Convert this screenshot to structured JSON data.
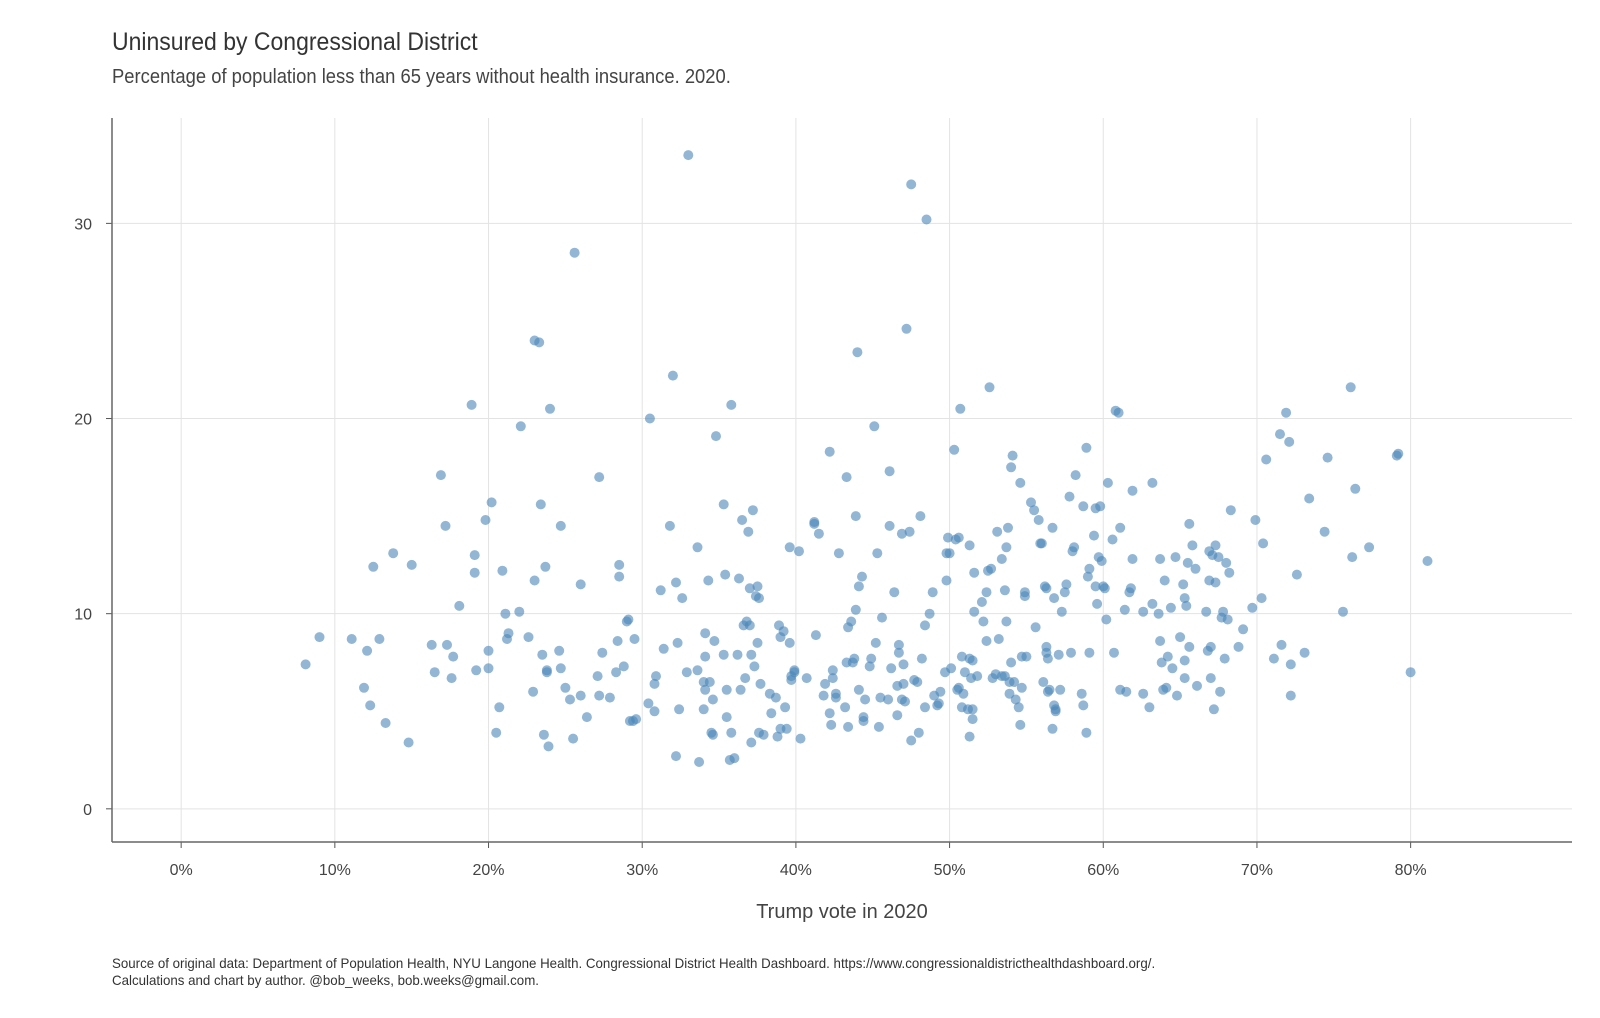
{
  "chart_data": {
    "type": "scatter",
    "title": "Uninsured by Congressional District",
    "subtitle": "Percentage of population less than 65 years without health insurance. 2020.",
    "xlabel": "Trump vote in 2020",
    "ylabel": "",
    "xlim": [
      -0.045,
      0.905
    ],
    "ylim": [
      -1.7,
      35.4
    ],
    "x_ticks": [
      0,
      0.1,
      0.2,
      0.3,
      0.4,
      0.5,
      0.6,
      0.7,
      0.8
    ],
    "x_tick_labels": [
      "0%",
      "10%",
      "20%",
      "30%",
      "40%",
      "50%",
      "60%",
      "70%",
      "80%"
    ],
    "y_ticks": [
      0,
      10,
      20,
      30
    ],
    "y_tick_labels": [
      "0",
      "10",
      "20",
      "30"
    ],
    "grid": true,
    "point_color": "#4a86b8",
    "caption_lines": [
      "Source of original data: Department of Population Health, NYU Langone Health. Congressional District Health Dashboard. https://www.congressionaldistricthealthdashboard.org/.",
      "Calculations and chart by author. @bob_weeks, bob.weeks@gmail.com."
    ],
    "points": [
      [
        0.081,
        7.4
      ],
      [
        0.09,
        8.8
      ],
      [
        0.111,
        8.7
      ],
      [
        0.119,
        6.2
      ],
      [
        0.121,
        8.1
      ],
      [
        0.123,
        5.3
      ],
      [
        0.125,
        12.4
      ],
      [
        0.129,
        8.7
      ],
      [
        0.133,
        4.4
      ],
      [
        0.138,
        13.1
      ],
      [
        0.148,
        3.4
      ],
      [
        0.15,
        12.5
      ],
      [
        0.163,
        8.4
      ],
      [
        0.165,
        7.0
      ],
      [
        0.169,
        17.1
      ],
      [
        0.172,
        14.5
      ],
      [
        0.173,
        8.4
      ],
      [
        0.176,
        6.7
      ],
      [
        0.177,
        7.8
      ],
      [
        0.181,
        10.4
      ],
      [
        0.189,
        20.7
      ],
      [
        0.191,
        13.0
      ],
      [
        0.191,
        12.1
      ],
      [
        0.192,
        7.1
      ],
      [
        0.198,
        14.8
      ],
      [
        0.2,
        8.1
      ],
      [
        0.2,
        7.2
      ],
      [
        0.202,
        15.7
      ],
      [
        0.205,
        3.9
      ],
      [
        0.207,
        5.2
      ],
      [
        0.209,
        12.2
      ],
      [
        0.211,
        10.0
      ],
      [
        0.212,
        8.7
      ],
      [
        0.213,
        9.0
      ],
      [
        0.22,
        10.1
      ],
      [
        0.221,
        19.6
      ],
      [
        0.226,
        8.8
      ],
      [
        0.229,
        6.0
      ],
      [
        0.23,
        11.7
      ],
      [
        0.23,
        24.0
      ],
      [
        0.233,
        23.9
      ],
      [
        0.234,
        15.6
      ],
      [
        0.235,
        7.9
      ],
      [
        0.236,
        3.8
      ],
      [
        0.237,
        12.4
      ],
      [
        0.238,
        7.0
      ],
      [
        0.238,
        7.1
      ],
      [
        0.239,
        3.2
      ],
      [
        0.24,
        20.5
      ],
      [
        0.246,
        8.1
      ],
      [
        0.247,
        14.5
      ],
      [
        0.247,
        7.2
      ],
      [
        0.25,
        6.2
      ],
      [
        0.253,
        5.6
      ],
      [
        0.255,
        3.6
      ],
      [
        0.256,
        28.5
      ],
      [
        0.26,
        11.5
      ],
      [
        0.26,
        5.8
      ],
      [
        0.264,
        4.7
      ],
      [
        0.271,
        6.8
      ],
      [
        0.272,
        17.0
      ],
      [
        0.272,
        5.8
      ],
      [
        0.274,
        8.0
      ],
      [
        0.279,
        5.7
      ],
      [
        0.283,
        7.0
      ],
      [
        0.284,
        8.6
      ],
      [
        0.285,
        12.5
      ],
      [
        0.285,
        11.9
      ],
      [
        0.288,
        7.3
      ],
      [
        0.29,
        9.6
      ],
      [
        0.291,
        9.7
      ],
      [
        0.292,
        4.5
      ],
      [
        0.294,
        4.5
      ],
      [
        0.295,
        8.7
      ],
      [
        0.296,
        4.6
      ],
      [
        0.304,
        5.4
      ],
      [
        0.305,
        20.0
      ],
      [
        0.308,
        5.0
      ],
      [
        0.308,
        6.4
      ],
      [
        0.309,
        6.8
      ],
      [
        0.312,
        11.2
      ],
      [
        0.314,
        8.2
      ],
      [
        0.318,
        14.5
      ],
      [
        0.32,
        22.2
      ],
      [
        0.322,
        11.6
      ],
      [
        0.322,
        2.7
      ],
      [
        0.323,
        8.5
      ],
      [
        0.324,
        5.1
      ],
      [
        0.326,
        10.8
      ],
      [
        0.329,
        7.0
      ],
      [
        0.33,
        33.5
      ],
      [
        0.336,
        13.4
      ],
      [
        0.336,
        7.1
      ],
      [
        0.337,
        2.4
      ],
      [
        0.34,
        6.5
      ],
      [
        0.34,
        5.1
      ],
      [
        0.341,
        9.0
      ],
      [
        0.341,
        6.1
      ],
      [
        0.341,
        7.8
      ],
      [
        0.343,
        11.7
      ],
      [
        0.344,
        6.5
      ],
      [
        0.345,
        3.9
      ],
      [
        0.346,
        3.8
      ],
      [
        0.346,
        5.6
      ],
      [
        0.347,
        8.6
      ],
      [
        0.348,
        19.1
      ],
      [
        0.353,
        15.6
      ],
      [
        0.353,
        7.9
      ],
      [
        0.354,
        12.0
      ],
      [
        0.355,
        4.7
      ],
      [
        0.355,
        6.1
      ],
      [
        0.357,
        2.5
      ],
      [
        0.358,
        20.7
      ],
      [
        0.358,
        3.9
      ],
      [
        0.36,
        2.6
      ],
      [
        0.362,
        7.9
      ],
      [
        0.363,
        11.8
      ],
      [
        0.364,
        6.1
      ],
      [
        0.365,
        14.8
      ],
      [
        0.366,
        9.4
      ],
      [
        0.367,
        6.7
      ],
      [
        0.368,
        9.6
      ],
      [
        0.369,
        14.2
      ],
      [
        0.37,
        11.3
      ],
      [
        0.37,
        9.4
      ],
      [
        0.371,
        3.4
      ],
      [
        0.371,
        7.9
      ],
      [
        0.372,
        15.3
      ],
      [
        0.373,
        7.3
      ],
      [
        0.374,
        10.9
      ],
      [
        0.375,
        11.4
      ],
      [
        0.375,
        8.5
      ],
      [
        0.376,
        3.9
      ],
      [
        0.376,
        10.8
      ],
      [
        0.377,
        6.4
      ],
      [
        0.379,
        3.8
      ],
      [
        0.383,
        5.9
      ],
      [
        0.384,
        4.9
      ],
      [
        0.387,
        5.7
      ],
      [
        0.388,
        3.7
      ],
      [
        0.389,
        9.4
      ],
      [
        0.39,
        8.8
      ],
      [
        0.39,
        4.1
      ],
      [
        0.392,
        9.1
      ],
      [
        0.393,
        5.2
      ],
      [
        0.394,
        4.1
      ],
      [
        0.396,
        13.4
      ],
      [
        0.396,
        8.5
      ],
      [
        0.397,
        6.8
      ],
      [
        0.397,
        6.6
      ],
      [
        0.399,
        7.0
      ],
      [
        0.399,
        7.1
      ],
      [
        0.402,
        13.2
      ],
      [
        0.403,
        3.6
      ],
      [
        0.407,
        6.7
      ],
      [
        0.412,
        14.7
      ],
      [
        0.412,
        14.6
      ],
      [
        0.413,
        8.9
      ],
      [
        0.415,
        14.1
      ],
      [
        0.418,
        5.8
      ],
      [
        0.419,
        6.4
      ],
      [
        0.422,
        18.3
      ],
      [
        0.422,
        4.9
      ],
      [
        0.423,
        4.3
      ],
      [
        0.424,
        6.7
      ],
      [
        0.424,
        7.1
      ],
      [
        0.426,
        5.9
      ],
      [
        0.426,
        5.7
      ],
      [
        0.428,
        13.1
      ],
      [
        0.432,
        5.2
      ],
      [
        0.433,
        7.5
      ],
      [
        0.433,
        17.0
      ],
      [
        0.434,
        9.3
      ],
      [
        0.434,
        4.2
      ],
      [
        0.436,
        9.6
      ],
      [
        0.437,
        7.5
      ],
      [
        0.438,
        7.7
      ],
      [
        0.439,
        15.0
      ],
      [
        0.439,
        10.2
      ],
      [
        0.44,
        23.4
      ],
      [
        0.441,
        6.1
      ],
      [
        0.441,
        11.4
      ],
      [
        0.443,
        11.9
      ],
      [
        0.444,
        4.5
      ],
      [
        0.444,
        4.7
      ],
      [
        0.445,
        5.6
      ],
      [
        0.448,
        7.3
      ],
      [
        0.449,
        7.7
      ],
      [
        0.451,
        19.6
      ],
      [
        0.452,
        8.5
      ],
      [
        0.453,
        13.1
      ],
      [
        0.454,
        4.2
      ],
      [
        0.455,
        5.7
      ],
      [
        0.456,
        9.8
      ],
      [
        0.46,
        5.6
      ],
      [
        0.461,
        14.5
      ],
      [
        0.461,
        17.3
      ],
      [
        0.462,
        7.2
      ],
      [
        0.464,
        11.1
      ],
      [
        0.466,
        4.8
      ],
      [
        0.466,
        6.3
      ],
      [
        0.467,
        8.4
      ],
      [
        0.467,
        8.0
      ],
      [
        0.469,
        5.6
      ],
      [
        0.469,
        14.1
      ],
      [
        0.47,
        7.4
      ],
      [
        0.47,
        6.4
      ],
      [
        0.471,
        5.5
      ],
      [
        0.472,
        24.6
      ],
      [
        0.474,
        14.2
      ],
      [
        0.475,
        3.5
      ],
      [
        0.475,
        32.0
      ],
      [
        0.477,
        6.6
      ],
      [
        0.479,
        6.5
      ],
      [
        0.48,
        3.9
      ],
      [
        0.481,
        15.0
      ],
      [
        0.482,
        7.7
      ],
      [
        0.484,
        5.2
      ],
      [
        0.484,
        9.4
      ],
      [
        0.485,
        30.2
      ],
      [
        0.487,
        10.0
      ],
      [
        0.489,
        11.1
      ],
      [
        0.49,
        5.8
      ],
      [
        0.492,
        5.3
      ],
      [
        0.493,
        5.4
      ],
      [
        0.494,
        6.0
      ],
      [
        0.497,
        7.0
      ],
      [
        0.498,
        11.7
      ],
      [
        0.498,
        13.1
      ],
      [
        0.499,
        13.9
      ],
      [
        0.5,
        13.1
      ],
      [
        0.501,
        7.2
      ],
      [
        0.503,
        18.4
      ],
      [
        0.504,
        13.8
      ],
      [
        0.505,
        6.1
      ],
      [
        0.506,
        13.9
      ],
      [
        0.506,
        6.2
      ],
      [
        0.507,
        20.5
      ],
      [
        0.508,
        5.2
      ],
      [
        0.508,
        7.8
      ],
      [
        0.509,
        5.9
      ],
      [
        0.51,
        7.0
      ],
      [
        0.512,
        5.1
      ],
      [
        0.513,
        13.5
      ],
      [
        0.513,
        3.7
      ],
      [
        0.513,
        7.7
      ],
      [
        0.514,
        6.7
      ],
      [
        0.515,
        5.1
      ],
      [
        0.515,
        7.6
      ],
      [
        0.515,
        4.6
      ],
      [
        0.516,
        10.1
      ],
      [
        0.516,
        12.1
      ],
      [
        0.518,
        6.8
      ],
      [
        0.521,
        10.6
      ],
      [
        0.522,
        9.6
      ],
      [
        0.524,
        8.6
      ],
      [
        0.524,
        11.1
      ],
      [
        0.525,
        12.2
      ],
      [
        0.526,
        21.6
      ],
      [
        0.527,
        12.3
      ],
      [
        0.528,
        6.7
      ],
      [
        0.53,
        6.9
      ],
      [
        0.531,
        14.2
      ],
      [
        0.532,
        8.7
      ],
      [
        0.534,
        12.8
      ],
      [
        0.534,
        6.8
      ],
      [
        0.536,
        6.8
      ],
      [
        0.536,
        11.2
      ],
      [
        0.537,
        9.6
      ],
      [
        0.537,
        13.4
      ],
      [
        0.538,
        14.4
      ],
      [
        0.539,
        6.5
      ],
      [
        0.539,
        5.9
      ],
      [
        0.54,
        7.5
      ],
      [
        0.54,
        17.5
      ],
      [
        0.541,
        18.1
      ],
      [
        0.542,
        6.5
      ],
      [
        0.543,
        5.6
      ],
      [
        0.545,
        5.2
      ],
      [
        0.546,
        16.7
      ],
      [
        0.546,
        4.3
      ],
      [
        0.547,
        7.8
      ],
      [
        0.547,
        6.2
      ],
      [
        0.549,
        10.9
      ],
      [
        0.549,
        11.1
      ],
      [
        0.55,
        7.8
      ],
      [
        0.553,
        15.7
      ],
      [
        0.555,
        15.3
      ],
      [
        0.556,
        9.3
      ],
      [
        0.558,
        14.8
      ],
      [
        0.559,
        13.6
      ],
      [
        0.56,
        13.6
      ],
      [
        0.561,
        6.5
      ],
      [
        0.562,
        11.4
      ],
      [
        0.563,
        11.3
      ],
      [
        0.563,
        8.3
      ],
      [
        0.563,
        8.0
      ],
      [
        0.564,
        7.7
      ],
      [
        0.564,
        6.0
      ],
      [
        0.565,
        6.1
      ],
      [
        0.567,
        14.4
      ],
      [
        0.567,
        4.1
      ],
      [
        0.568,
        10.8
      ],
      [
        0.568,
        5.3
      ],
      [
        0.569,
        5.0
      ],
      [
        0.569,
        5.1
      ],
      [
        0.571,
        7.9
      ],
      [
        0.572,
        6.1
      ],
      [
        0.573,
        10.1
      ],
      [
        0.575,
        11.1
      ],
      [
        0.576,
        11.5
      ],
      [
        0.578,
        16.0
      ],
      [
        0.579,
        8.0
      ],
      [
        0.58,
        13.2
      ],
      [
        0.581,
        13.4
      ],
      [
        0.582,
        17.1
      ],
      [
        0.586,
        5.9
      ],
      [
        0.587,
        15.5
      ],
      [
        0.587,
        5.3
      ],
      [
        0.589,
        18.5
      ],
      [
        0.589,
        3.9
      ],
      [
        0.59,
        11.9
      ],
      [
        0.591,
        8.0
      ],
      [
        0.591,
        12.3
      ],
      [
        0.594,
        14.0
      ],
      [
        0.595,
        15.4
      ],
      [
        0.595,
        11.4
      ],
      [
        0.596,
        10.5
      ],
      [
        0.597,
        12.9
      ],
      [
        0.598,
        15.5
      ],
      [
        0.599,
        12.7
      ],
      [
        0.6,
        11.4
      ],
      [
        0.601,
        11.3
      ],
      [
        0.602,
        9.7
      ],
      [
        0.603,
        16.7
      ],
      [
        0.606,
        13.8
      ],
      [
        0.607,
        8.0
      ],
      [
        0.608,
        20.4
      ],
      [
        0.61,
        20.3
      ],
      [
        0.611,
        14.4
      ],
      [
        0.611,
        6.1
      ],
      [
        0.614,
        10.2
      ],
      [
        0.615,
        6.0
      ],
      [
        0.617,
        11.1
      ],
      [
        0.618,
        11.3
      ],
      [
        0.619,
        12.8
      ],
      [
        0.619,
        16.3
      ],
      [
        0.626,
        10.1
      ],
      [
        0.626,
        5.9
      ],
      [
        0.63,
        5.2
      ],
      [
        0.632,
        16.7
      ],
      [
        0.632,
        10.5
      ],
      [
        0.636,
        10.0
      ],
      [
        0.637,
        12.8
      ],
      [
        0.637,
        8.6
      ],
      [
        0.638,
        7.5
      ],
      [
        0.639,
        6.1
      ],
      [
        0.64,
        11.7
      ],
      [
        0.641,
        6.2
      ],
      [
        0.642,
        7.8
      ],
      [
        0.644,
        10.3
      ],
      [
        0.645,
        7.2
      ],
      [
        0.647,
        12.9
      ],
      [
        0.648,
        5.8
      ],
      [
        0.65,
        8.8
      ],
      [
        0.652,
        11.5
      ],
      [
        0.653,
        10.8
      ],
      [
        0.653,
        7.6
      ],
      [
        0.653,
        6.7
      ],
      [
        0.654,
        10.4
      ],
      [
        0.655,
        12.6
      ],
      [
        0.656,
        14.6
      ],
      [
        0.656,
        8.3
      ],
      [
        0.658,
        13.5
      ],
      [
        0.66,
        12.3
      ],
      [
        0.661,
        6.3
      ],
      [
        0.667,
        10.1
      ],
      [
        0.668,
        8.1
      ],
      [
        0.669,
        11.7
      ],
      [
        0.669,
        13.2
      ],
      [
        0.67,
        8.3
      ],
      [
        0.67,
        6.7
      ],
      [
        0.671,
        13.0
      ],
      [
        0.672,
        5.1
      ],
      [
        0.673,
        11.6
      ],
      [
        0.673,
        13.5
      ],
      [
        0.675,
        12.9
      ],
      [
        0.676,
        6.0
      ],
      [
        0.677,
        9.8
      ],
      [
        0.678,
        10.1
      ],
      [
        0.679,
        7.7
      ],
      [
        0.68,
        12.6
      ],
      [
        0.681,
        9.7
      ],
      [
        0.682,
        12.1
      ],
      [
        0.683,
        15.3
      ],
      [
        0.688,
        8.3
      ],
      [
        0.691,
        9.2
      ],
      [
        0.697,
        10.3
      ],
      [
        0.699,
        14.8
      ],
      [
        0.703,
        10.8
      ],
      [
        0.704,
        13.6
      ],
      [
        0.706,
        17.9
      ],
      [
        0.711,
        7.7
      ],
      [
        0.715,
        19.2
      ],
      [
        0.716,
        8.4
      ],
      [
        0.719,
        20.3
      ],
      [
        0.721,
        18.8
      ],
      [
        0.722,
        5.8
      ],
      [
        0.722,
        7.4
      ],
      [
        0.726,
        12.0
      ],
      [
        0.731,
        8.0
      ],
      [
        0.734,
        15.9
      ],
      [
        0.744,
        14.2
      ],
      [
        0.746,
        18.0
      ],
      [
        0.756,
        10.1
      ],
      [
        0.761,
        21.6
      ],
      [
        0.762,
        12.9
      ],
      [
        0.764,
        16.4
      ],
      [
        0.773,
        13.4
      ],
      [
        0.791,
        18.1
      ],
      [
        0.792,
        18.2
      ],
      [
        0.8,
        7.0
      ],
      [
        0.811,
        12.7
      ]
    ]
  }
}
